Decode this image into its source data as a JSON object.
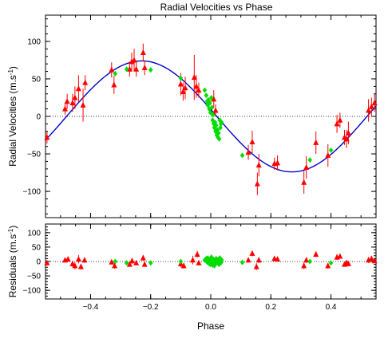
{
  "chart_data": [
    {
      "type": "scatter",
      "title": "Radial Velocities vs Phase",
      "xlabel": "",
      "ylabel_text": "Radial Velocities (m.s",
      "ylabel_sup": "-1",
      "ylabel_close": ")",
      "xlim": [
        -0.55,
        0.55
      ],
      "ylim": [
        -135,
        135
      ],
      "xticks": [
        -0.4,
        -0.2,
        0.0,
        0.2,
        0.4
      ],
      "xtick_labels": [
        "",
        "",
        "",
        "",
        ""
      ],
      "yticks": [
        -100,
        -50,
        0,
        50,
        100
      ],
      "ytick_labels": [
        "−100",
        "−50",
        "0",
        "50",
        "100"
      ],
      "grid": false,
      "zero_line": true,
      "colors": {
        "dataset_a": "#ff0000",
        "dataset_b": "#00dd00",
        "model": "#0000cc"
      },
      "model_curve": {
        "type": "sine",
        "amplitude": 74,
        "phase_of_max": -0.23,
        "offset": 0,
        "period": 1
      },
      "series": [
        {
          "marker": "triangle",
          "color": "#ff0000",
          "points": [
            {
              "x": -0.545,
              "y": -28,
              "err": 8
            },
            {
              "x": -0.485,
              "y": 10,
              "err": 8
            },
            {
              "x": -0.478,
              "y": 20,
              "err": 10
            },
            {
              "x": -0.46,
              "y": 18,
              "err": 12
            },
            {
              "x": -0.452,
              "y": 25,
              "err": 15
            },
            {
              "x": -0.44,
              "y": 37,
              "err": 18
            },
            {
              "x": -0.425,
              "y": 15,
              "err": 22
            },
            {
              "x": -0.418,
              "y": 45,
              "err": 10
            },
            {
              "x": -0.33,
              "y": 62,
              "err": 10
            },
            {
              "x": -0.322,
              "y": 42,
              "err": 12
            },
            {
              "x": -0.27,
              "y": 63,
              "err": 10
            },
            {
              "x": -0.263,
              "y": 73,
              "err": 12
            },
            {
              "x": -0.255,
              "y": 75,
              "err": 15
            },
            {
              "x": -0.248,
              "y": 63,
              "err": 10
            },
            {
              "x": -0.225,
              "y": 85,
              "err": 12
            },
            {
              "x": -0.22,
              "y": 65,
              "err": 10
            },
            {
              "x": -0.1,
              "y": 43,
              "err": 15
            },
            {
              "x": -0.092,
              "y": 33,
              "err": 12
            },
            {
              "x": -0.085,
              "y": 38,
              "err": 15
            },
            {
              "x": -0.055,
              "y": 52,
              "err": 30
            },
            {
              "x": -0.048,
              "y": 40,
              "err": 15
            },
            {
              "x": -0.04,
              "y": 35,
              "err": 10
            },
            {
              "x": 0.01,
              "y": 23,
              "err": 12
            },
            {
              "x": 0.016,
              "y": 8,
              "err": 8
            },
            {
              "x": 0.125,
              "y": -48,
              "err": 10
            },
            {
              "x": 0.138,
              "y": -34,
              "err": 15
            },
            {
              "x": 0.155,
              "y": -90,
              "err": 15
            },
            {
              "x": 0.16,
              "y": -65,
              "err": 15
            },
            {
              "x": 0.212,
              "y": -63,
              "err": 8
            },
            {
              "x": 0.222,
              "y": -62,
              "err": 10
            },
            {
              "x": 0.31,
              "y": -88,
              "err": 15
            },
            {
              "x": 0.318,
              "y": -68,
              "err": 15
            },
            {
              "x": 0.35,
              "y": -35,
              "err": 15
            },
            {
              "x": 0.39,
              "y": -52,
              "err": 15
            },
            {
              "x": 0.42,
              "y": -10,
              "err": 12
            },
            {
              "x": 0.43,
              "y": -5,
              "err": 10
            },
            {
              "x": 0.445,
              "y": -28,
              "err": 10
            },
            {
              "x": 0.452,
              "y": -30,
              "err": 12
            },
            {
              "x": 0.458,
              "y": -22,
              "err": 15
            },
            {
              "x": 0.525,
              "y": 8,
              "err": 15
            },
            {
              "x": 0.535,
              "y": 13,
              "err": 12
            },
            {
              "x": 0.545,
              "y": 18,
              "err": 12
            }
          ]
        },
        {
          "marker": "diamond",
          "color": "#00dd00",
          "points": [
            {
              "x": -0.318,
              "y": 57
            },
            {
              "x": -0.28,
              "y": 63
            },
            {
              "x": -0.2,
              "y": 62
            },
            {
              "x": -0.1,
              "y": 51
            },
            {
              "x": -0.02,
              "y": 35
            },
            {
              "x": -0.015,
              "y": 28
            },
            {
              "x": -0.012,
              "y": 20
            },
            {
              "x": -0.01,
              "y": 15
            },
            {
              "x": -0.008,
              "y": 22
            },
            {
              "x": -0.005,
              "y": 10
            },
            {
              "x": -0.003,
              "y": 18
            },
            {
              "x": -0.001,
              "y": 5
            },
            {
              "x": 0.002,
              "y": 25
            },
            {
              "x": 0.004,
              "y": 12
            },
            {
              "x": 0.006,
              "y": -5
            },
            {
              "x": 0.008,
              "y": 2
            },
            {
              "x": 0.01,
              "y": -10
            },
            {
              "x": 0.012,
              "y": -15
            },
            {
              "x": 0.014,
              "y": -8
            },
            {
              "x": 0.016,
              "y": -20
            },
            {
              "x": 0.018,
              "y": -12
            },
            {
              "x": 0.02,
              "y": -25
            },
            {
              "x": 0.022,
              "y": -18
            },
            {
              "x": 0.024,
              "y": -28
            },
            {
              "x": 0.026,
              "y": -22
            },
            {
              "x": 0.028,
              "y": -30
            },
            {
              "x": 0.03,
              "y": -5
            },
            {
              "x": 0.032,
              "y": -15
            },
            {
              "x": 0.034,
              "y": -10
            },
            {
              "x": 0.036,
              "y": -8
            },
            {
              "x": 0.105,
              "y": -52
            },
            {
              "x": 0.33,
              "y": -58
            },
            {
              "x": 0.4,
              "y": -45
            }
          ]
        }
      ]
    },
    {
      "type": "scatter",
      "title": "",
      "xlabel": "Phase",
      "ylabel_text": "Residuals (m.s",
      "ylabel_sup": "-1",
      "ylabel_close": ")",
      "xlim": [
        -0.55,
        0.55
      ],
      "ylim": [
        -130,
        130
      ],
      "xticks": [
        -0.4,
        -0.2,
        0.0,
        0.2,
        0.4
      ],
      "xtick_labels": [
        "−0.4",
        "−0.2",
        "0.0",
        "0.2",
        "0.4"
      ],
      "yticks": [
        -100,
        -50,
        0,
        50,
        100
      ],
      "ytick_labels": [
        "−100",
        "−50",
        "0",
        "50",
        "100"
      ],
      "grid": false,
      "zero_line": true,
      "series": [
        {
          "marker": "triangle",
          "color": "#ff0000",
          "points": [
            {
              "x": -0.545,
              "y": -5,
              "err": 8
            },
            {
              "x": -0.485,
              "y": 5,
              "err": 8
            },
            {
              "x": -0.475,
              "y": 8,
              "err": 8
            },
            {
              "x": -0.46,
              "y": -8,
              "err": 10
            },
            {
              "x": -0.452,
              "y": -15,
              "err": 12
            },
            {
              "x": -0.44,
              "y": 8,
              "err": 15
            },
            {
              "x": -0.432,
              "y": -18,
              "err": 10
            },
            {
              "x": -0.42,
              "y": 5,
              "err": 10
            },
            {
              "x": -0.33,
              "y": -2,
              "err": 8
            },
            {
              "x": -0.32,
              "y": -15,
              "err": 10
            },
            {
              "x": -0.27,
              "y": -10,
              "err": 8
            },
            {
              "x": -0.262,
              "y": 2,
              "err": 10
            },
            {
              "x": -0.248,
              "y": -5,
              "err": 8
            },
            {
              "x": -0.225,
              "y": 12,
              "err": 10
            },
            {
              "x": -0.22,
              "y": -10,
              "err": 8
            },
            {
              "x": -0.1,
              "y": -8,
              "err": 12
            },
            {
              "x": -0.09,
              "y": -15,
              "err": 10
            },
            {
              "x": -0.06,
              "y": 5,
              "err": 15
            },
            {
              "x": -0.045,
              "y": 25,
              "err": 12
            },
            {
              "x": -0.04,
              "y": -5,
              "err": 8
            },
            {
              "x": 0.01,
              "y": 5,
              "err": 10
            },
            {
              "x": 0.125,
              "y": 5,
              "err": 8
            },
            {
              "x": 0.138,
              "y": 28,
              "err": 10
            },
            {
              "x": 0.152,
              "y": -18,
              "err": 12
            },
            {
              "x": 0.16,
              "y": 5,
              "err": 10
            },
            {
              "x": 0.212,
              "y": 10,
              "err": 8
            },
            {
              "x": 0.222,
              "y": 8,
              "err": 8
            },
            {
              "x": 0.31,
              "y": -15,
              "err": 12
            },
            {
              "x": 0.318,
              "y": 5,
              "err": 10
            },
            {
              "x": 0.35,
              "y": 25,
              "err": 10
            },
            {
              "x": 0.39,
              "y": -15,
              "err": 10
            },
            {
              "x": 0.42,
              "y": 15,
              "err": 10
            },
            {
              "x": 0.43,
              "y": 18,
              "err": 8
            },
            {
              "x": 0.445,
              "y": -10,
              "err": 8
            },
            {
              "x": 0.452,
              "y": -5,
              "err": 10
            },
            {
              "x": 0.458,
              "y": -8,
              "err": 8
            },
            {
              "x": 0.525,
              "y": 5,
              "err": 10
            },
            {
              "x": 0.535,
              "y": 10,
              "err": 8
            },
            {
              "x": 0.545,
              "y": 2,
              "err": 8
            }
          ]
        },
        {
          "marker": "diamond",
          "color": "#00dd00",
          "points": [
            {
              "x": -0.318,
              "y": 0
            },
            {
              "x": -0.28,
              "y": -5
            },
            {
              "x": -0.2,
              "y": -5
            },
            {
              "x": -0.1,
              "y": 0
            },
            {
              "x": -0.02,
              "y": 5
            },
            {
              "x": -0.015,
              "y": 10
            },
            {
              "x": -0.012,
              "y": -2
            },
            {
              "x": -0.01,
              "y": 12
            },
            {
              "x": -0.008,
              "y": 0
            },
            {
              "x": -0.005,
              "y": -8
            },
            {
              "x": -0.003,
              "y": 6
            },
            {
              "x": -0.001,
              "y": -10
            },
            {
              "x": 0.002,
              "y": 15
            },
            {
              "x": 0.004,
              "y": 2
            },
            {
              "x": 0.006,
              "y": -12
            },
            {
              "x": 0.008,
              "y": 8
            },
            {
              "x": 0.01,
              "y": -5
            },
            {
              "x": 0.012,
              "y": -15
            },
            {
              "x": 0.014,
              "y": 5
            },
            {
              "x": 0.016,
              "y": -8
            },
            {
              "x": 0.018,
              "y": 10
            },
            {
              "x": 0.02,
              "y": -3
            },
            {
              "x": 0.022,
              "y": 3
            },
            {
              "x": 0.024,
              "y": -6
            },
            {
              "x": 0.026,
              "y": 8
            },
            {
              "x": 0.028,
              "y": -10
            },
            {
              "x": 0.03,
              "y": 12
            },
            {
              "x": 0.032,
              "y": 0
            },
            {
              "x": 0.034,
              "y": -4
            },
            {
              "x": 0.036,
              "y": 6
            },
            {
              "x": 0.105,
              "y": -3
            },
            {
              "x": 0.33,
              "y": 0
            },
            {
              "x": 0.4,
              "y": -5
            }
          ]
        }
      ]
    }
  ]
}
